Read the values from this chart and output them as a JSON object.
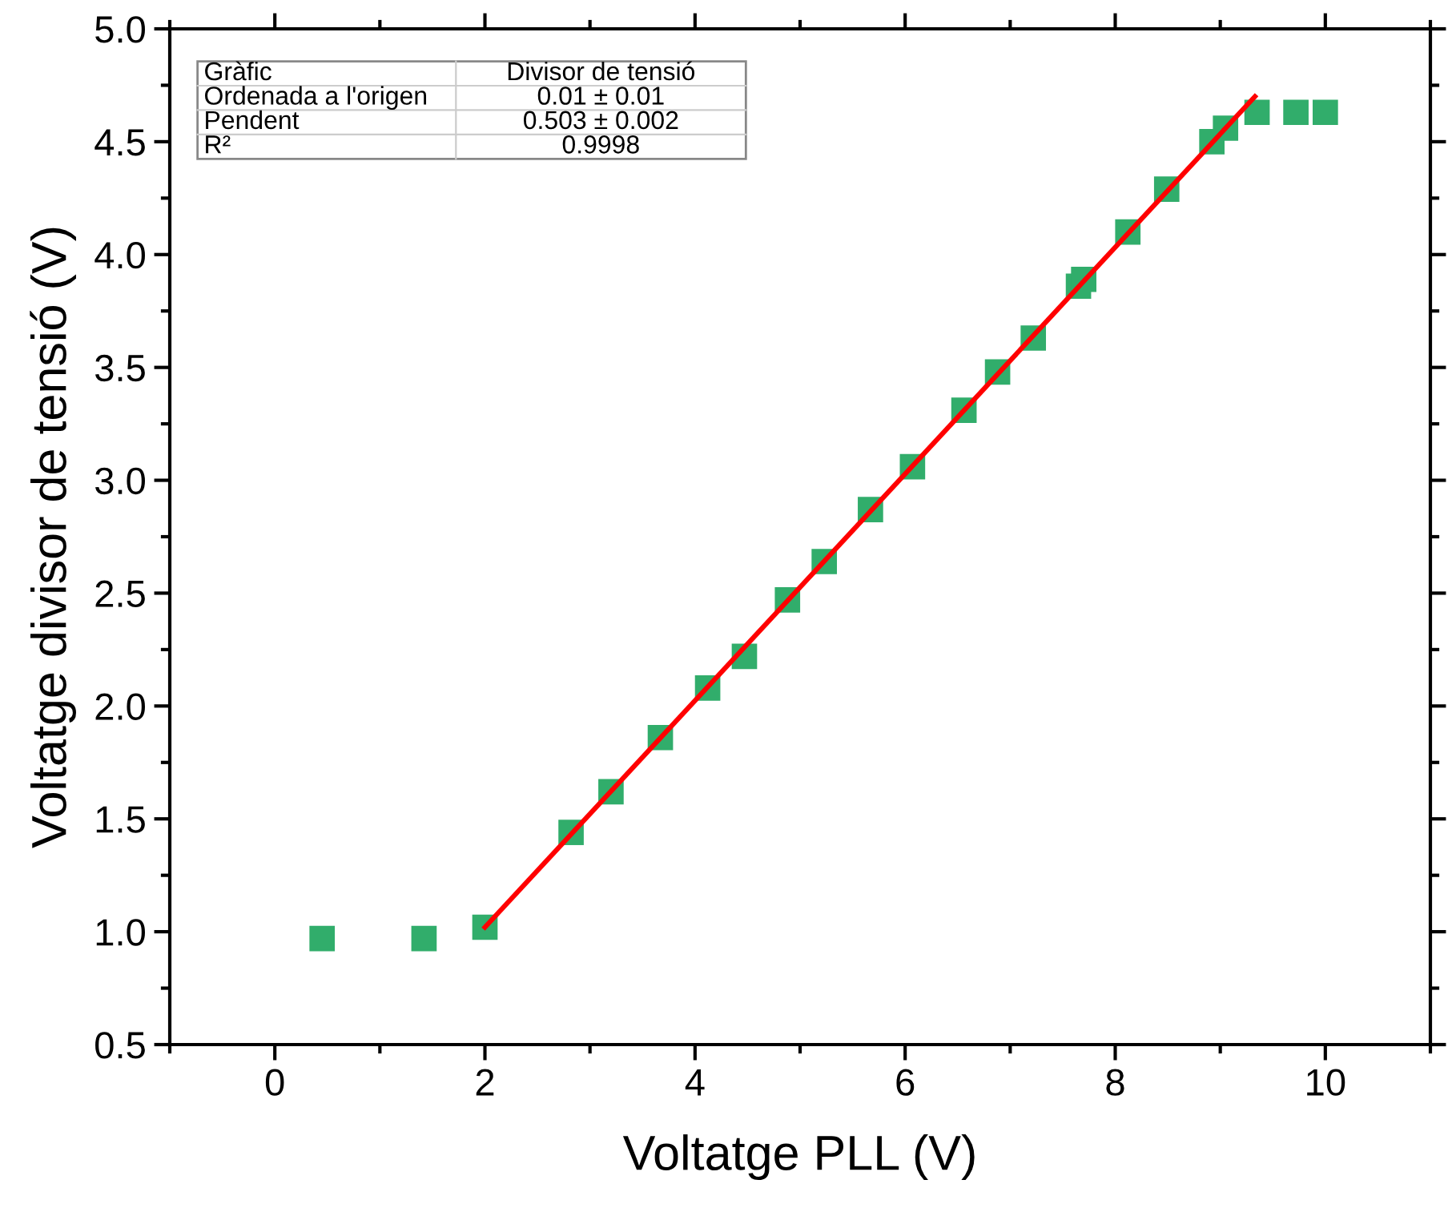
{
  "chart_data": {
    "type": "scatter",
    "xlabel": "Voltatge PLL (V)",
    "ylabel": "Voltatge divisor de tensió (V)",
    "xlim": [
      -1,
      11
    ],
    "xticks": [
      0,
      2,
      4,
      6,
      8,
      10
    ],
    "ylim": [
      0.5,
      5.0
    ],
    "yticks": [
      {
        "value": 0.5,
        "label": "0.5"
      },
      {
        "value": 1.0,
        "label": "1.0"
      },
      {
        "value": 1.5,
        "label": "1.5"
      },
      {
        "value": 2.0,
        "label": "2.0"
      },
      {
        "value": 2.5,
        "label": "2.5"
      },
      {
        "value": 3.0,
        "label": "3.0"
      },
      {
        "value": 3.5,
        "label": "3.5"
      },
      {
        "value": 4.0,
        "label": "4.0"
      },
      {
        "value": 4.5,
        "label": "4.5"
      },
      {
        "value": 5.0,
        "label": "5.0"
      }
    ],
    "grid": false,
    "legend": false,
    "series": [
      {
        "marker": "square",
        "color": "#31ad6b",
        "x": [
          0.45,
          1.42,
          2.0,
          2.82,
          3.2,
          3.67,
          4.12,
          4.47,
          4.88,
          5.23,
          5.67,
          6.07,
          6.56,
          6.88,
          7.22,
          7.65,
          7.7,
          8.12,
          8.49,
          8.92,
          9.05,
          9.35,
          9.72,
          10.0
        ],
        "values": [
          0.97,
          0.97,
          1.02,
          1.44,
          1.62,
          1.86,
          2.08,
          2.22,
          2.47,
          2.64,
          2.87,
          3.06,
          3.31,
          3.48,
          3.63,
          3.86,
          3.89,
          4.1,
          4.29,
          4.5,
          4.56,
          4.63,
          4.63,
          4.63
        ]
      },
      {
        "type": "line",
        "line_style": "solid",
        "color": "#ff0000",
        "x": [
          2.0,
          9.33
        ],
        "values": [
          1.02,
          4.7
        ]
      }
    ],
    "annotations": [
      "Gràfic",
      "Divisor de tensió",
      "Ordenada a l'origen",
      "0.01 ± 0.01",
      "Pendent",
      "0.503 ± 0.002",
      "R²",
      "0.9998"
    ]
  }
}
